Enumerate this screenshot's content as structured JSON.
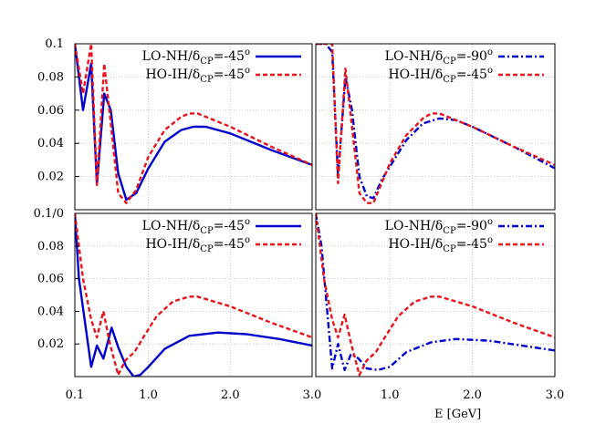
{
  "figure": {
    "xlabel": "E [GeV]"
  },
  "chart_data": [
    {
      "type": "line",
      "panel": "top-left",
      "xlim": [
        0.1,
        3.0
      ],
      "ylim": [
        0.0,
        0.1
      ],
      "x_ticks": [
        "0.1",
        "1.0",
        "2.0",
        "3.0"
      ],
      "y_ticks": [
        "0.1",
        "0.08",
        "0.06",
        "0.04",
        "0.02"
      ],
      "grid": true,
      "legend_position": "top-right",
      "series": [
        {
          "name_parts": [
            "LO-NH/δ",
            "CP",
            "=-45",
            "o"
          ],
          "color": "#0000cc",
          "style": "solid",
          "x": [
            0.1,
            0.2,
            0.3,
            0.37,
            0.46,
            0.54,
            0.63,
            0.73,
            0.85,
            1.0,
            1.2,
            1.4,
            1.55,
            1.7,
            2.0,
            2.5,
            3.0
          ],
          "y": [
            0.1,
            0.06,
            0.088,
            0.015,
            0.07,
            0.06,
            0.022,
            0.006,
            0.01,
            0.025,
            0.041,
            0.048,
            0.05,
            0.05,
            0.046,
            0.036,
            0.027
          ]
        },
        {
          "name_parts": [
            "HO-IH/δ",
            "CP",
            "=-45",
            "o"
          ],
          "color": "#e8141c",
          "style": "dashed",
          "x": [
            0.1,
            0.2,
            0.3,
            0.37,
            0.46,
            0.54,
            0.63,
            0.73,
            0.85,
            1.0,
            1.2,
            1.4,
            1.5,
            1.6,
            2.0,
            2.5,
            3.0
          ],
          "y": [
            0.1,
            0.07,
            0.1,
            0.015,
            0.088,
            0.052,
            0.01,
            0.004,
            0.012,
            0.032,
            0.048,
            0.056,
            0.058,
            0.058,
            0.05,
            0.038,
            0.027
          ]
        }
      ]
    },
    {
      "type": "line",
      "panel": "top-right",
      "xlim": [
        0.1,
        3.0
      ],
      "ylim": [
        0.0,
        0.1
      ],
      "x_ticks": [
        "1.0",
        "2.0",
        "3.0"
      ],
      "grid": true,
      "legend_position": "top-right",
      "series": [
        {
          "name_parts": [
            "LO-NH/δ",
            "CP",
            "=-90",
            "o"
          ],
          "color": "#0000cc",
          "style": "dash-dot",
          "x": [
            0.1,
            0.22,
            0.3,
            0.37,
            0.46,
            0.54,
            0.63,
            0.72,
            0.8,
            0.9,
            1.0,
            1.2,
            1.4,
            1.6,
            1.8,
            2.0,
            2.5,
            3.0
          ],
          "y": [
            0.1,
            0.1,
            0.095,
            0.02,
            0.08,
            0.06,
            0.02,
            0.008,
            0.007,
            0.018,
            0.026,
            0.042,
            0.052,
            0.055,
            0.054,
            0.05,
            0.038,
            0.025
          ]
        },
        {
          "name_parts": [
            "HO-IH/δ",
            "CP",
            "=-45",
            "o"
          ],
          "color": "#e8141c",
          "style": "dashed",
          "x": [
            0.1,
            0.22,
            0.3,
            0.37,
            0.46,
            0.54,
            0.63,
            0.72,
            0.8,
            0.9,
            1.0,
            1.2,
            1.4,
            1.5,
            1.6,
            2.0,
            2.5,
            3.0
          ],
          "y": [
            0.1,
            0.1,
            0.1,
            0.016,
            0.085,
            0.05,
            0.01,
            0.004,
            0.004,
            0.016,
            0.028,
            0.045,
            0.055,
            0.058,
            0.058,
            0.05,
            0.038,
            0.027
          ]
        }
      ]
    },
    {
      "type": "line",
      "panel": "bottom-left",
      "xlim": [
        0.1,
        3.0
      ],
      "ylim": [
        0.0,
        0.1
      ],
      "x_ticks": [
        "0.1",
        "1.0",
        "2.0",
        "3.0"
      ],
      "y_ticks": [
        "0.1/0",
        "0.08",
        "0.06",
        "0.04",
        "0.02"
      ],
      "grid": true,
      "legend_position": "top-right",
      "series": [
        {
          "name_parts": [
            "LO-NH/δ",
            "CP",
            "=-45",
            "o"
          ],
          "color": "#0000cc",
          "style": "solid",
          "x": [
            0.1,
            0.15,
            0.3,
            0.37,
            0.45,
            0.55,
            0.63,
            0.73,
            0.82,
            0.9,
            1.0,
            1.2,
            1.5,
            1.85,
            2.2,
            2.6,
            3.0
          ],
          "y": [
            0.1,
            0.06,
            0.006,
            0.019,
            0.011,
            0.03,
            0.018,
            0.006,
            0.0,
            0.001,
            0.006,
            0.017,
            0.025,
            0.027,
            0.026,
            0.023,
            0.019
          ]
        },
        {
          "name_parts": [
            "HO-IH/δ",
            "CP",
            "=-45",
            "o"
          ],
          "color": "#e8141c",
          "style": "dashed",
          "x": [
            0.1,
            0.2,
            0.3,
            0.37,
            0.45,
            0.53,
            0.63,
            0.72,
            0.83,
            0.95,
            1.1,
            1.3,
            1.5,
            1.6,
            2.0,
            2.5,
            3.0
          ],
          "y": [
            0.1,
            0.06,
            0.035,
            0.024,
            0.04,
            0.02,
            0.001,
            0.01,
            0.015,
            0.025,
            0.037,
            0.046,
            0.049,
            0.049,
            0.043,
            0.033,
            0.024
          ]
        }
      ]
    },
    {
      "type": "line",
      "panel": "bottom-right",
      "xlim": [
        0.1,
        3.0
      ],
      "ylim": [
        0.0,
        0.1
      ],
      "x_ticks": [
        "1.0",
        "2.0",
        "3.0"
      ],
      "grid": true,
      "legend_position": "top-right",
      "series": [
        {
          "name_parts": [
            "LO-NH/δ",
            "CP",
            "=-90",
            "o"
          ],
          "color": "#0000cc",
          "style": "dash-dot",
          "x": [
            0.1,
            0.17,
            0.3,
            0.37,
            0.45,
            0.53,
            0.62,
            0.72,
            0.85,
            1.0,
            1.2,
            1.5,
            1.8,
            2.2,
            2.6,
            3.0
          ],
          "y": [
            0.1,
            0.08,
            0.005,
            0.02,
            0.004,
            0.014,
            0.011,
            0.005,
            0.004,
            0.006,
            0.015,
            0.021,
            0.023,
            0.022,
            0.019,
            0.016
          ]
        },
        {
          "name_parts": [
            "HO-IH/δ",
            "CP",
            "=-45",
            "o"
          ],
          "color": "#e8141c",
          "style": "dashed",
          "x": [
            0.1,
            0.2,
            0.3,
            0.37,
            0.45,
            0.53,
            0.63,
            0.72,
            0.83,
            0.95,
            1.1,
            1.3,
            1.5,
            1.6,
            2.0,
            2.5,
            3.0
          ],
          "y": [
            0.1,
            0.06,
            0.035,
            0.024,
            0.038,
            0.02,
            0.001,
            0.01,
            0.015,
            0.025,
            0.037,
            0.046,
            0.049,
            0.049,
            0.043,
            0.033,
            0.024
          ]
        }
      ]
    }
  ]
}
